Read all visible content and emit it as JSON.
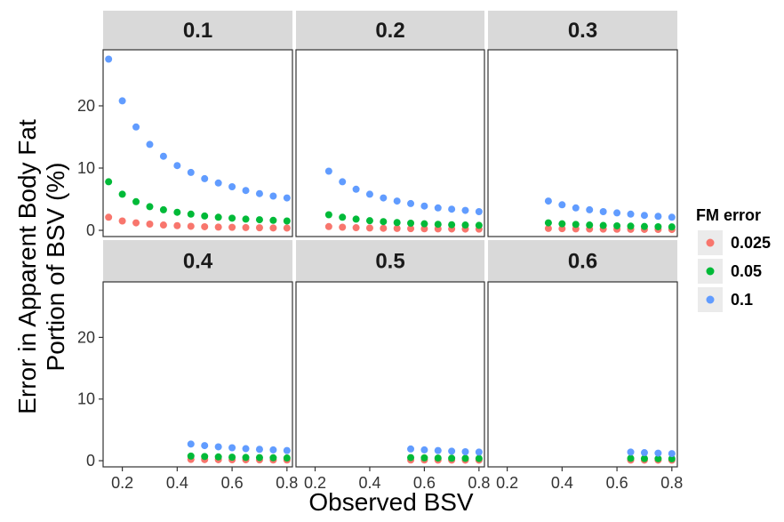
{
  "chart_data": {
    "type": "scatter",
    "xlabel": "Observed BSV",
    "ylabel_lines": [
      "Error in Apparent Body Fat",
      "Portion of BSV (%)"
    ],
    "xlim": [
      0.13,
      0.82
    ],
    "ylim": [
      -1,
      29
    ],
    "x_ticks": [
      0.2,
      0.4,
      0.6,
      0.8
    ],
    "x_tick_labels": [
      "0.2",
      "0.4",
      "0.6",
      "0.8"
    ],
    "y_ticks": [
      0,
      10,
      20
    ],
    "y_tick_labels": [
      "0",
      "10",
      "20"
    ],
    "grid": false,
    "legend": {
      "title": "FM error",
      "placement": "right",
      "entries": [
        {
          "label": "0.025",
          "color": "#F8766D"
        },
        {
          "label": "0.05",
          "color": "#00BA38"
        },
        {
          "label": "0.1",
          "color": "#619CFF"
        }
      ]
    },
    "panels": [
      {
        "label": "0.1",
        "x": [
          0.15,
          0.2,
          0.25,
          0.3,
          0.35,
          0.4,
          0.45,
          0.5,
          0.55,
          0.6,
          0.65,
          0.7,
          0.75,
          0.8
        ],
        "series": [
          {
            "name": "0.025",
            "values": [
              2.1,
              1.5,
              1.2,
              1.0,
              0.85,
              0.75,
              0.65,
              0.58,
              0.52,
              0.48,
              0.44,
              0.41,
              0.38,
              0.36
            ]
          },
          {
            "name": "0.05",
            "values": [
              7.8,
              5.8,
              4.6,
              3.8,
              3.3,
              2.9,
              2.6,
              2.3,
              2.1,
              1.95,
              1.8,
              1.7,
              1.6,
              1.5
            ]
          },
          {
            "name": "0.1",
            "values": [
              27.5,
              20.8,
              16.6,
              13.8,
              11.9,
              10.4,
              9.3,
              8.3,
              7.6,
              7.0,
              6.4,
              5.9,
              5.5,
              5.2
            ]
          }
        ]
      },
      {
        "label": "0.2",
        "x": [
          0.25,
          0.3,
          0.35,
          0.4,
          0.45,
          0.5,
          0.55,
          0.6,
          0.65,
          0.7,
          0.75,
          0.8
        ],
        "series": [
          {
            "name": "0.025",
            "values": [
              0.6,
              0.5,
              0.42,
              0.37,
              0.33,
              0.3,
              0.27,
              0.25,
              0.23,
              0.22,
              0.2,
              0.19
            ]
          },
          {
            "name": "0.05",
            "values": [
              2.5,
              2.1,
              1.8,
              1.55,
              1.4,
              1.25,
              1.15,
              1.05,
              0.97,
              0.9,
              0.85,
              0.8
            ]
          },
          {
            "name": "0.1",
            "values": [
              9.5,
              7.8,
              6.6,
              5.8,
              5.2,
              4.7,
              4.3,
              3.9,
              3.6,
              3.4,
              3.2,
              3.0
            ]
          }
        ]
      },
      {
        "label": "0.3",
        "x": [
          0.35,
          0.4,
          0.45,
          0.5,
          0.55,
          0.6,
          0.65,
          0.7,
          0.75,
          0.8
        ],
        "series": [
          {
            "name": "0.025",
            "values": [
              0.3,
              0.26,
              0.23,
              0.21,
              0.19,
              0.17,
              0.16,
              0.15,
              0.14,
              0.13
            ]
          },
          {
            "name": "0.05",
            "values": [
              1.2,
              1.05,
              0.95,
              0.85,
              0.78,
              0.72,
              0.67,
              0.62,
              0.58,
              0.55
            ]
          },
          {
            "name": "0.1",
            "values": [
              4.7,
              4.1,
              3.6,
              3.3,
              3.0,
              2.8,
              2.6,
              2.4,
              2.25,
              2.1
            ]
          }
        ]
      },
      {
        "label": "0.4",
        "x": [
          0.45,
          0.5,
          0.55,
          0.6,
          0.65,
          0.7,
          0.75,
          0.8
        ],
        "series": [
          {
            "name": "0.025",
            "values": [
              0.2,
              0.18,
              0.16,
              0.15,
              0.14,
              0.13,
              0.12,
              0.11
            ]
          },
          {
            "name": "0.05",
            "values": [
              0.75,
              0.68,
              0.62,
              0.57,
              0.53,
              0.5,
              0.47,
              0.44
            ]
          },
          {
            "name": "0.1",
            "values": [
              2.7,
              2.45,
              2.25,
              2.1,
              1.95,
              1.85,
              1.75,
              1.65
            ]
          }
        ]
      },
      {
        "label": "0.5",
        "x": [
          0.55,
          0.6,
          0.65,
          0.7,
          0.75,
          0.8
        ],
        "series": [
          {
            "name": "0.025",
            "values": [
              0.12,
              0.11,
              0.1,
              0.1,
              0.09,
              0.09
            ]
          },
          {
            "name": "0.05",
            "values": [
              0.5,
              0.46,
              0.43,
              0.4,
              0.38,
              0.36
            ]
          },
          {
            "name": "0.1",
            "values": [
              1.9,
              1.75,
              1.65,
              1.55,
              1.45,
              1.4
            ]
          }
        ]
      },
      {
        "label": "0.6",
        "x": [
          0.65,
          0.7,
          0.75,
          0.8
        ],
        "series": [
          {
            "name": "0.025",
            "values": [
              0.1,
              0.09,
              0.09,
              0.08
            ]
          },
          {
            "name": "0.05",
            "values": [
              0.38,
              0.35,
              0.33,
              0.31
            ]
          },
          {
            "name": "0.1",
            "values": [
              1.4,
              1.3,
              1.22,
              1.15
            ]
          }
        ]
      }
    ]
  }
}
